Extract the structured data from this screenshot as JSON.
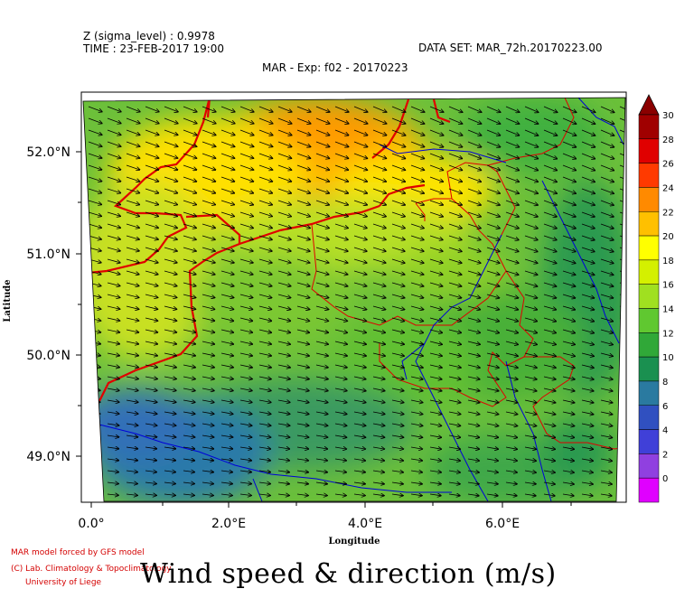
{
  "header": {
    "z_label": "Z (sigma_level) : 0.9978",
    "time_label": "TIME : 23-FEB-2017 19:00",
    "dataset_label": "DATA SET: MAR_72h.20170223.00",
    "experiment_title": "MAR - Exp: f02 - 20170223"
  },
  "axes": {
    "xlabel": "Longitude",
    "ylabel": "Latitude",
    "x_ticks": [
      "0.0°",
      "2.0°E",
      "4.0°E",
      "6.0°E"
    ],
    "y_ticks": [
      "52.0°N",
      "51.0°N",
      "50.0°N",
      "49.0°N"
    ]
  },
  "colorbar": {
    "labels": [
      "30",
      "28",
      "26",
      "24",
      "22",
      "20",
      "18",
      "16",
      "14",
      "12",
      "10",
      "8",
      "6",
      "4",
      "2",
      "0"
    ],
    "colors": [
      "#a00000",
      "#e00000",
      "#ff3a00",
      "#ff8a00",
      "#ffc000",
      "#ffff00",
      "#d4f000",
      "#a0e020",
      "#60c830",
      "#30a838",
      "#1a9050",
      "#2a7aa0",
      "#3050c0",
      "#4040d8",
      "#9040e0",
      "#e000ff"
    ]
  },
  "footer": {
    "credit_1": "MAR model forced by GFS model",
    "credit_2": "(C) Lab. Climatology & Topoclimatology",
    "credit_3": "University of Liege",
    "main_title": "Wind speed & direction (m/s)"
  }
}
